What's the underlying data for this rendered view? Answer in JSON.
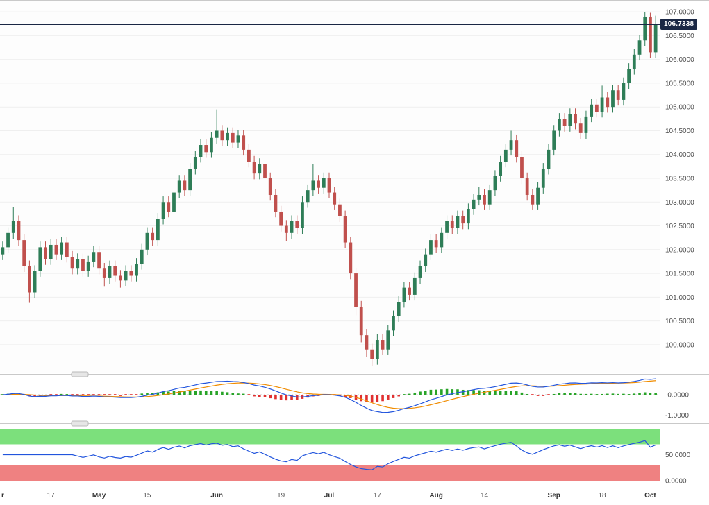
{
  "current_price": {
    "label": "106.7338",
    "value": 106.7338
  },
  "price_axis": {
    "min": 99.4,
    "max": 107.25,
    "ticks": [
      {
        "v": 107.0,
        "label": "107.0000"
      },
      {
        "v": 106.5,
        "label": "106.5000"
      },
      {
        "v": 106.0,
        "label": "106.0000"
      },
      {
        "v": 105.5,
        "label": "105.5000"
      },
      {
        "v": 105.0,
        "label": "105.0000"
      },
      {
        "v": 104.5,
        "label": "104.5000"
      },
      {
        "v": 104.0,
        "label": "104.0000"
      },
      {
        "v": 103.5,
        "label": "103.5000"
      },
      {
        "v": 103.0,
        "label": "103.0000"
      },
      {
        "v": 102.5,
        "label": "102.5000"
      },
      {
        "v": 102.0,
        "label": "102.0000"
      },
      {
        "v": 101.5,
        "label": "101.5000"
      },
      {
        "v": 101.0,
        "label": "101.0000"
      },
      {
        "v": 100.5,
        "label": "100.5000"
      },
      {
        "v": 100.0,
        "label": "100.0000"
      }
    ]
  },
  "time_axis": {
    "ticks": [
      {
        "label": "r",
        "i": 0,
        "bold": true
      },
      {
        "label": "17",
        "i": 9,
        "bold": false
      },
      {
        "label": "May",
        "i": 18,
        "bold": true
      },
      {
        "label": "15",
        "i": 27,
        "bold": false
      },
      {
        "label": "Jun",
        "i": 40,
        "bold": true
      },
      {
        "label": "19",
        "i": 52,
        "bold": false
      },
      {
        "label": "Jul",
        "i": 61,
        "bold": true
      },
      {
        "label": "17",
        "i": 70,
        "bold": false
      },
      {
        "label": "Aug",
        "i": 81,
        "bold": true
      },
      {
        "label": "14",
        "i": 90,
        "bold": false
      },
      {
        "label": "Sep",
        "i": 103,
        "bold": true
      },
      {
        "label": "18",
        "i": 112,
        "bold": false
      },
      {
        "label": "Oct",
        "i": 121,
        "bold": true
      }
    ]
  },
  "colors": {
    "grid": "#efefef",
    "separator": "#c9c9c9",
    "axis_border": "#d9d9d9",
    "price_line": "#1a2744",
    "badge_bg": "#1a2744",
    "badge_text": "#ffffff",
    "panel_bg": "#fdfdfd",
    "handle_fill": "#e6e6e6",
    "handle_stroke": "#b9b9b9",
    "zero_line": "#b8b8b8"
  },
  "chart_data": [
    {
      "type": "candlestick",
      "name": "price-series",
      "up_color": "#2e7d57",
      "down_color": "#c0504d",
      "ohlc_format": [
        "open",
        "high",
        "low",
        "close"
      ],
      "ylim": [
        99.4,
        107.25
      ],
      "candles": [
        [
          101.9,
          102.17,
          101.78,
          102.05
        ],
        [
          102.05,
          102.47,
          101.93,
          102.35
        ],
        [
          102.35,
          102.9,
          102.23,
          102.6
        ],
        [
          102.6,
          102.72,
          102.08,
          102.2
        ],
        [
          102.2,
          102.32,
          101.53,
          101.65
        ],
        [
          101.65,
          101.77,
          100.88,
          101.1
        ],
        [
          101.1,
          101.67,
          100.98,
          101.55
        ],
        [
          101.55,
          102.17,
          101.43,
          102.05
        ],
        [
          102.05,
          102.17,
          101.68,
          101.8
        ],
        [
          101.8,
          102.22,
          101.68,
          102.1
        ],
        [
          102.1,
          102.22,
          101.78,
          101.9
        ],
        [
          101.9,
          102.27,
          101.78,
          102.15
        ],
        [
          102.15,
          102.27,
          101.73,
          101.85
        ],
        [
          101.85,
          101.97,
          101.48,
          101.6
        ],
        [
          101.6,
          101.92,
          101.48,
          101.8
        ],
        [
          101.8,
          101.92,
          101.43,
          101.55
        ],
        [
          101.55,
          101.87,
          101.43,
          101.75
        ],
        [
          101.75,
          102.07,
          101.63,
          101.95
        ],
        [
          101.95,
          102.07,
          101.48,
          101.6
        ],
        [
          101.6,
          101.72,
          101.22,
          101.4
        ],
        [
          101.4,
          101.77,
          101.28,
          101.65
        ],
        [
          101.65,
          101.77,
          101.33,
          101.45
        ],
        [
          101.45,
          101.57,
          101.2,
          101.35
        ],
        [
          101.35,
          101.67,
          101.23,
          101.55
        ],
        [
          101.55,
          101.67,
          101.33,
          101.45
        ],
        [
          101.45,
          101.82,
          101.33,
          101.7
        ],
        [
          101.7,
          102.12,
          101.58,
          102.0
        ],
        [
          102.0,
          102.47,
          101.88,
          102.35
        ],
        [
          102.35,
          102.47,
          102.08,
          102.2
        ],
        [
          102.2,
          102.77,
          102.08,
          102.65
        ],
        [
          102.65,
          103.12,
          102.53,
          103.0
        ],
        [
          103.0,
          103.12,
          102.68,
          102.8
        ],
        [
          102.8,
          103.32,
          102.68,
          103.2
        ],
        [
          103.2,
          103.57,
          103.08,
          103.45
        ],
        [
          103.45,
          103.57,
          103.13,
          103.25
        ],
        [
          103.25,
          103.82,
          103.13,
          103.7
        ],
        [
          103.7,
          104.07,
          103.58,
          103.95
        ],
        [
          103.95,
          104.32,
          103.83,
          104.2
        ],
        [
          104.2,
          104.32,
          103.93,
          104.05
        ],
        [
          104.05,
          104.47,
          103.93,
          104.35
        ],
        [
          104.35,
          104.95,
          104.23,
          104.5
        ],
        [
          104.5,
          104.62,
          104.18,
          104.3
        ],
        [
          104.3,
          104.57,
          104.18,
          104.45
        ],
        [
          104.45,
          104.57,
          104.13,
          104.25
        ],
        [
          104.25,
          104.52,
          104.13,
          104.4
        ],
        [
          104.4,
          104.52,
          103.98,
          104.1
        ],
        [
          104.1,
          104.22,
          103.73,
          103.85
        ],
        [
          103.85,
          103.97,
          103.48,
          103.6
        ],
        [
          103.6,
          103.92,
          103.48,
          103.8
        ],
        [
          103.8,
          103.92,
          103.38,
          103.5
        ],
        [
          103.5,
          103.62,
          103.03,
          103.15
        ],
        [
          103.15,
          103.27,
          102.68,
          102.8
        ],
        [
          102.8,
          102.92,
          102.38,
          102.5
        ],
        [
          102.5,
          102.62,
          102.18,
          102.35
        ],
        [
          102.35,
          102.72,
          102.23,
          102.6
        ],
        [
          102.6,
          102.72,
          102.33,
          102.45
        ],
        [
          102.45,
          103.12,
          102.33,
          103.0
        ],
        [
          103.0,
          103.37,
          102.88,
          103.25
        ],
        [
          103.25,
          103.8,
          103.13,
          103.45
        ],
        [
          103.45,
          103.57,
          103.18,
          103.3
        ],
        [
          103.3,
          103.62,
          103.18,
          103.5
        ],
        [
          103.5,
          103.62,
          103.08,
          103.2
        ],
        [
          103.2,
          103.32,
          102.83,
          102.95
        ],
        [
          102.95,
          103.07,
          102.58,
          102.7
        ],
        [
          102.7,
          102.82,
          102.03,
          102.15
        ],
        [
          102.15,
          102.27,
          101.38,
          101.5
        ],
        [
          101.5,
          101.62,
          100.62,
          100.8
        ],
        [
          100.8,
          100.92,
          100.05,
          100.2
        ],
        [
          100.2,
          100.32,
          99.75,
          99.9
        ],
        [
          99.9,
          100.02,
          99.55,
          99.7
        ],
        [
          99.7,
          100.22,
          99.58,
          100.1
        ],
        [
          100.1,
          100.22,
          99.78,
          99.9
        ],
        [
          99.9,
          100.42,
          99.78,
          100.3
        ],
        [
          100.3,
          100.72,
          100.18,
          100.6
        ],
        [
          100.6,
          101.02,
          100.48,
          100.9
        ],
        [
          100.9,
          101.32,
          100.78,
          101.2
        ],
        [
          101.2,
          101.32,
          100.93,
          101.05
        ],
        [
          101.05,
          101.52,
          100.93,
          101.4
        ],
        [
          101.4,
          101.77,
          101.28,
          101.65
        ],
        [
          101.65,
          102.02,
          101.53,
          101.9
        ],
        [
          101.9,
          102.32,
          101.78,
          102.2
        ],
        [
          102.2,
          102.32,
          101.93,
          102.05
        ],
        [
          102.05,
          102.47,
          101.93,
          102.35
        ],
        [
          102.35,
          102.72,
          102.23,
          102.6
        ],
        [
          102.6,
          102.72,
          102.33,
          102.45
        ],
        [
          102.45,
          102.82,
          102.33,
          102.7
        ],
        [
          102.7,
          102.82,
          102.43,
          102.55
        ],
        [
          102.55,
          102.97,
          102.43,
          102.85
        ],
        [
          102.85,
          103.17,
          102.73,
          103.05
        ],
        [
          103.05,
          103.32,
          102.93,
          103.15
        ],
        [
          103.15,
          103.27,
          102.83,
          102.95
        ],
        [
          102.95,
          103.37,
          102.83,
          103.25
        ],
        [
          103.25,
          103.67,
          103.13,
          103.55
        ],
        [
          103.55,
          103.97,
          103.43,
          103.85
        ],
        [
          103.85,
          104.22,
          103.73,
          104.1
        ],
        [
          104.1,
          104.5,
          103.98,
          104.3
        ],
        [
          104.3,
          104.42,
          103.83,
          103.95
        ],
        [
          103.95,
          104.07,
          103.38,
          103.5
        ],
        [
          103.5,
          103.62,
          103.03,
          103.15
        ],
        [
          103.15,
          103.27,
          102.83,
          102.95
        ],
        [
          102.95,
          103.42,
          102.83,
          103.3
        ],
        [
          103.3,
          103.82,
          103.18,
          103.7
        ],
        [
          103.7,
          104.22,
          103.58,
          104.1
        ],
        [
          104.1,
          104.62,
          103.98,
          104.5
        ],
        [
          104.5,
          104.87,
          104.38,
          104.75
        ],
        [
          104.75,
          104.87,
          104.48,
          104.6
        ],
        [
          104.6,
          104.97,
          104.48,
          104.85
        ],
        [
          104.85,
          104.97,
          104.53,
          104.65
        ],
        [
          104.65,
          104.77,
          104.33,
          104.45
        ],
        [
          104.45,
          104.92,
          104.33,
          104.8
        ],
        [
          104.8,
          105.17,
          104.68,
          105.05
        ],
        [
          105.05,
          105.17,
          104.78,
          104.9
        ],
        [
          104.9,
          105.45,
          104.78,
          105.2
        ],
        [
          105.2,
          105.32,
          104.88,
          105.0
        ],
        [
          105.0,
          105.47,
          104.88,
          105.35
        ],
        [
          105.35,
          105.47,
          105.03,
          105.15
        ],
        [
          105.15,
          105.62,
          105.03,
          105.5
        ],
        [
          105.5,
          105.92,
          105.38,
          105.8
        ],
        [
          105.8,
          106.22,
          105.68,
          106.1
        ],
        [
          106.1,
          106.52,
          105.98,
          106.4
        ],
        [
          106.4,
          107.0,
          106.28,
          106.9
        ],
        [
          106.9,
          106.98,
          106.03,
          106.15
        ],
        [
          106.15,
          106.92,
          106.03,
          106.73
        ]
      ]
    },
    {
      "type": "macd",
      "name": "macd-indicator",
      "derived_from": "price-series closes",
      "params": {
        "fast": 12,
        "slow": 26,
        "signal": 9
      },
      "macd_color": "#2255dd",
      "signal_color": "#f08c00",
      "hist_up": "#27a327",
      "hist_down": "#e03030",
      "ylim": [
        -1.35,
        0.95
      ],
      "y_ticks": [
        {
          "v": 0,
          "label": "-0.0000"
        },
        {
          "v": -1,
          "label": "-1.0000"
        }
      ]
    },
    {
      "type": "rsi",
      "name": "rsi-indicator",
      "derived_from": "price-series closes",
      "period": 14,
      "line_color": "#2255dd",
      "ylim": [
        -8,
        108
      ],
      "bands": {
        "upper": [
          70,
          100
        ],
        "lower": [
          0,
          30
        ],
        "upper_color": "#7ce07c",
        "lower_color": "#ef8181"
      },
      "y_ticks": [
        {
          "v": 50,
          "label": "50.0000"
        },
        {
          "v": 0,
          "label": "0.0000"
        }
      ]
    }
  ]
}
